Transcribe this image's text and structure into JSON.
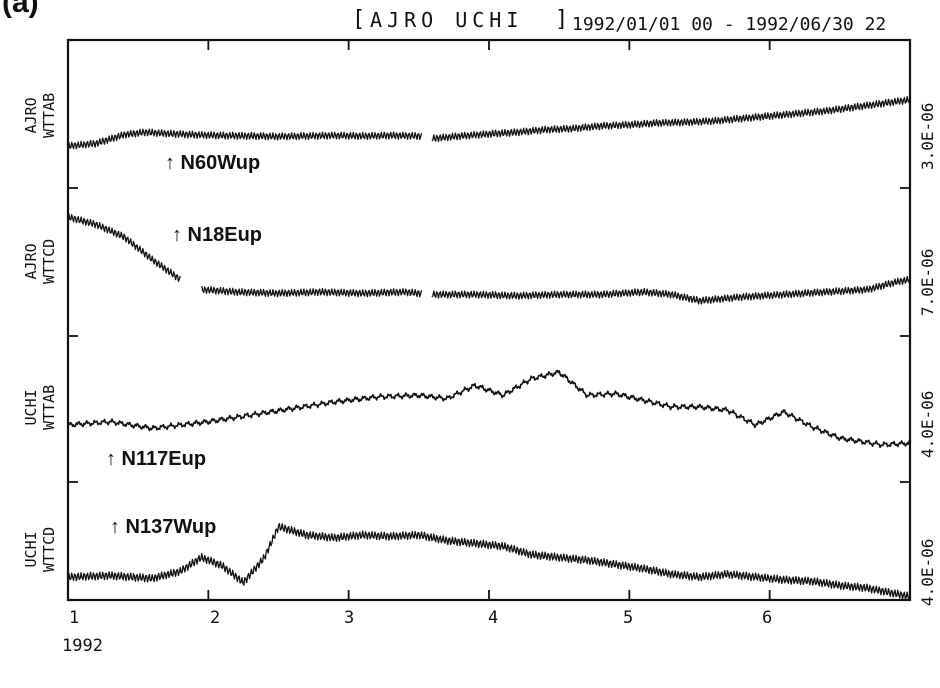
{
  "panel_letter": "(a)",
  "header": {
    "bracket_open": "[",
    "stations": "AJRO UCHI",
    "bracket_close": "]",
    "range": "1992/01/01 00 - 1992/06/30 22"
  },
  "year_label": "1992",
  "colors": {
    "trace": "#111111",
    "axis": "#111111",
    "background": "#ffffff"
  },
  "chart_data": {
    "type": "line",
    "title": "[ AJRO UCHI ] 1992/01/01 00 - 1992/06/30 22",
    "x_ticks": [
      "1",
      "2",
      "3",
      "4",
      "5",
      "6"
    ],
    "xlim": [
      1,
      7
    ],
    "grid": false,
    "series": [
      {
        "name": "AJRO WTTAB",
        "label_line1": "AJRO",
        "label_line2": "WTTAB",
        "annotation": "↑ N60Wup",
        "scale": "3.0E-06",
        "gaps": [
          [
            3.52,
            3.59
          ]
        ],
        "x": [
          1.0,
          1.2,
          1.4,
          1.55,
          1.7,
          1.9,
          2.1,
          2.3,
          2.5,
          2.7,
          2.9,
          3.1,
          3.3,
          3.5,
          3.6,
          3.8,
          4.0,
          4.2,
          4.4,
          4.6,
          4.8,
          5.0,
          5.2,
          5.4,
          5.6,
          5.8,
          6.0,
          6.2,
          6.4,
          6.6,
          6.8,
          7.0
        ],
        "y": [
          0.0,
          0.1,
          0.45,
          0.55,
          0.5,
          0.45,
          0.42,
          0.4,
          0.38,
          0.4,
          0.42,
          0.4,
          0.42,
          0.4,
          0.3,
          0.4,
          0.48,
          0.55,
          0.65,
          0.7,
          0.8,
          0.85,
          0.92,
          0.95,
          1.0,
          1.1,
          1.2,
          1.3,
          1.4,
          1.55,
          1.7,
          1.85
        ],
        "ripple": 1
      },
      {
        "name": "AJRO WTTCD",
        "label_line1": "AJRO",
        "label_line2": "WTTCD",
        "annotation": "↑ N18Eup",
        "scale": "7.0E-06",
        "gaps": [
          [
            1.8,
            1.95
          ],
          [
            3.52,
            3.59
          ]
        ],
        "x": [
          1.0,
          1.2,
          1.4,
          1.6,
          1.8,
          1.95,
          2.2,
          2.5,
          2.8,
          3.1,
          3.4,
          3.6,
          3.9,
          4.2,
          4.5,
          4.8,
          5.1,
          5.3,
          5.5,
          5.8,
          6.1,
          6.4,
          6.7,
          6.9,
          7.0
        ],
        "y": [
          3.0,
          2.7,
          2.2,
          1.3,
          0.5,
          0.1,
          0.0,
          -0.05,
          0.0,
          -0.05,
          0.0,
          -0.1,
          -0.1,
          -0.15,
          -0.1,
          -0.1,
          0.0,
          -0.1,
          -0.35,
          -0.2,
          -0.1,
          0.0,
          0.1,
          0.4,
          0.5
        ],
        "ripple": 1
      },
      {
        "name": "UCHI WTTAB",
        "label_line1": "UCHI",
        "label_line2": "WTTAB",
        "annotation": "↑ N117Eup",
        "scale": "4.0E-06",
        "gaps": [],
        "x": [
          1.0,
          1.3,
          1.6,
          1.8,
          2.0,
          2.3,
          2.6,
          2.9,
          3.2,
          3.5,
          3.7,
          3.9,
          4.1,
          4.3,
          4.5,
          4.7,
          4.9,
          5.1,
          5.3,
          5.5,
          5.7,
          5.9,
          6.1,
          6.3,
          6.5,
          6.8,
          7.0
        ],
        "y": [
          0.0,
          0.1,
          -0.1,
          0.0,
          0.1,
          0.3,
          0.5,
          0.7,
          0.85,
          0.9,
          0.8,
          1.2,
          0.9,
          1.4,
          1.6,
          0.9,
          0.95,
          0.75,
          0.55,
          0.55,
          0.45,
          0.0,
          0.4,
          -0.05,
          -0.4,
          -0.6,
          -0.55
        ],
        "ripple": 0
      },
      {
        "name": "UCHI WTTCD",
        "label_line1": "UCHI",
        "label_line2": "WTTCD",
        "annotation": "↑ N137Wup",
        "scale": "4.0E-06",
        "gaps": [],
        "x": [
          1.0,
          1.3,
          1.6,
          1.8,
          1.95,
          2.1,
          2.25,
          2.4,
          2.5,
          2.7,
          2.9,
          3.1,
          3.3,
          3.5,
          3.7,
          3.9,
          4.1,
          4.3,
          4.5,
          4.7,
          4.9,
          5.1,
          5.3,
          5.5,
          5.7,
          5.9,
          6.1,
          6.3,
          6.5,
          6.7,
          6.9,
          7.0
        ],
        "y": [
          0.0,
          0.05,
          -0.05,
          0.2,
          0.7,
          0.4,
          -0.2,
          0.7,
          1.8,
          1.5,
          1.4,
          1.5,
          1.45,
          1.5,
          1.3,
          1.2,
          1.1,
          0.8,
          0.7,
          0.6,
          0.45,
          0.3,
          0.1,
          0.0,
          0.1,
          0.0,
          -0.1,
          -0.15,
          -0.3,
          -0.4,
          -0.6,
          -0.7
        ],
        "ripple": 1
      }
    ]
  }
}
